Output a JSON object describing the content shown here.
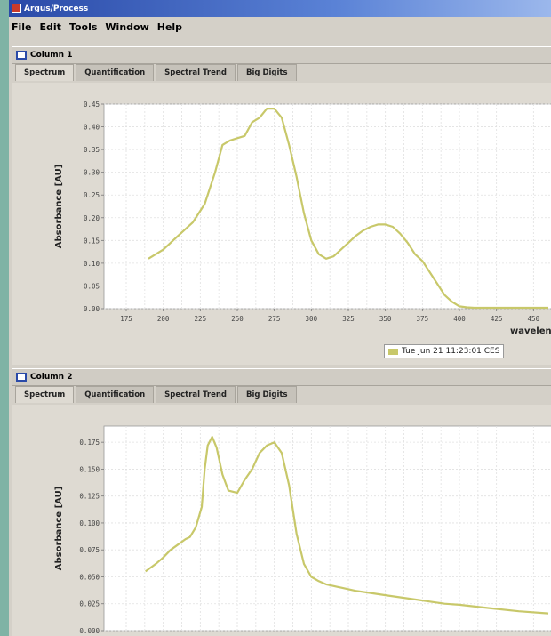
{
  "window": {
    "title": "Argus/Process"
  },
  "menu": [
    "File",
    "Edit",
    "Tools",
    "Window",
    "Help"
  ],
  "tabs": [
    "Spectrum",
    "Quantification",
    "Spectral Trend",
    "Big Digits"
  ],
  "frames": [
    {
      "title": "Column 1",
      "legend": "Tue Jun 21 11:23:01 CES"
    },
    {
      "title": "Column 2"
    }
  ],
  "colors": {
    "series": "#c8c86a",
    "plot_bg": "#ffffff",
    "grid": "#e0e0e0",
    "title_gradient_start": "#2a4aa8"
  },
  "chart_data": [
    {
      "type": "line",
      "xlabel": "wavelen",
      "ylabel": "Absorbance [AU]",
      "xlim": [
        160,
        460
      ],
      "ylim": [
        0,
        0.45
      ],
      "x_ticks": [
        175,
        200,
        225,
        250,
        275,
        300,
        325,
        350,
        375,
        400,
        425,
        450
      ],
      "y_ticks": [
        0.0,
        0.05,
        0.1,
        0.15,
        0.2,
        0.25,
        0.3,
        0.35,
        0.4,
        0.45
      ],
      "series": [
        {
          "x": [
            190,
            200,
            210,
            220,
            228,
            235,
            240,
            245,
            250,
            255,
            260,
            265,
            270,
            275,
            280,
            285,
            290,
            295,
            300,
            305,
            310,
            315,
            320,
            325,
            330,
            335,
            340,
            345,
            350,
            355,
            360,
            365,
            370,
            375,
            380,
            385,
            390,
            395,
            400,
            405,
            410,
            420,
            430,
            440,
            450,
            460
          ],
          "y": [
            0.11,
            0.13,
            0.16,
            0.19,
            0.23,
            0.3,
            0.36,
            0.37,
            0.375,
            0.38,
            0.41,
            0.42,
            0.44,
            0.44,
            0.42,
            0.36,
            0.29,
            0.21,
            0.15,
            0.12,
            0.11,
            0.115,
            0.13,
            0.145,
            0.16,
            0.172,
            0.18,
            0.185,
            0.185,
            0.18,
            0.165,
            0.145,
            0.12,
            0.105,
            0.08,
            0.055,
            0.03,
            0.015,
            0.005,
            0.003,
            0.002,
            0.002,
            0.002,
            0.002,
            0.002,
            0.002
          ]
        }
      ]
    },
    {
      "type": "line",
      "ylabel": "Absorbance [AU]",
      "xlim": [
        160,
        460
      ],
      "ylim": [
        0,
        0.19
      ],
      "y_ticks": [
        0.0,
        0.025,
        0.05,
        0.075,
        0.1,
        0.125,
        0.15,
        0.175
      ],
      "series": [
        {
          "x": [
            188,
            195,
            200,
            205,
            210,
            215,
            218,
            222,
            226,
            228,
            230,
            233,
            236,
            240,
            244,
            250,
            255,
            260,
            265,
            270,
            275,
            280,
            285,
            290,
            295,
            300,
            305,
            310,
            320,
            330,
            340,
            350,
            360,
            370,
            380,
            390,
            400,
            420,
            440,
            460
          ],
          "y": [
            0.055,
            0.062,
            0.068,
            0.075,
            0.08,
            0.085,
            0.087,
            0.096,
            0.115,
            0.15,
            0.172,
            0.18,
            0.17,
            0.145,
            0.13,
            0.128,
            0.14,
            0.15,
            0.165,
            0.172,
            0.175,
            0.165,
            0.135,
            0.09,
            0.062,
            0.05,
            0.046,
            0.043,
            0.04,
            0.037,
            0.035,
            0.033,
            0.031,
            0.029,
            0.027,
            0.025,
            0.024,
            0.021,
            0.018,
            0.016
          ]
        }
      ]
    }
  ]
}
